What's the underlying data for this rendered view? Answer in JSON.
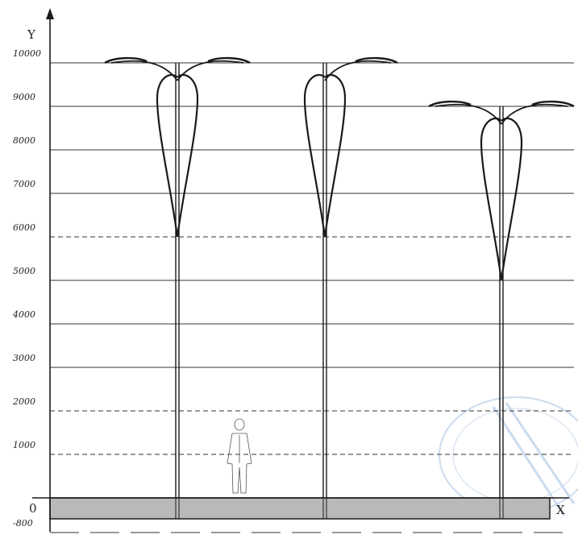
{
  "axes": {
    "y_name": "Y",
    "x_name": "X",
    "origin_label": "0"
  },
  "y_ticks": [
    {
      "label": "10000",
      "value": 10000,
      "line": "solid"
    },
    {
      "label": "9000",
      "value": 9000,
      "line": "solid"
    },
    {
      "label": "8000",
      "value": 8000,
      "line": "solid"
    },
    {
      "label": "7000",
      "value": 7000,
      "line": "solid"
    },
    {
      "label": "6000",
      "value": 6000,
      "line": "dashed"
    },
    {
      "label": "5000",
      "value": 5000,
      "line": "solid"
    },
    {
      "label": "4000",
      "value": 4000,
      "line": "solid"
    },
    {
      "label": "3000",
      "value": 3000,
      "line": "solid"
    },
    {
      "label": "2000",
      "value": 2000,
      "line": "dashed"
    },
    {
      "label": "1000",
      "value": 1000,
      "line": "dashed"
    },
    {
      "label": "-800",
      "value": -800,
      "line": "dashed"
    }
  ],
  "poles": [
    {
      "height": 10000,
      "arm_low": 6000
    },
    {
      "height": 10000,
      "arm_low": 6000,
      "single_arm": true
    },
    {
      "height": 9000,
      "arm_low": 5000
    }
  ],
  "colors": {
    "line": "#1a1a1a",
    "ground_fill": "#b9b9b9",
    "watermark": "#8fb0d8"
  },
  "figure": {
    "height_mm": 1800
  }
}
